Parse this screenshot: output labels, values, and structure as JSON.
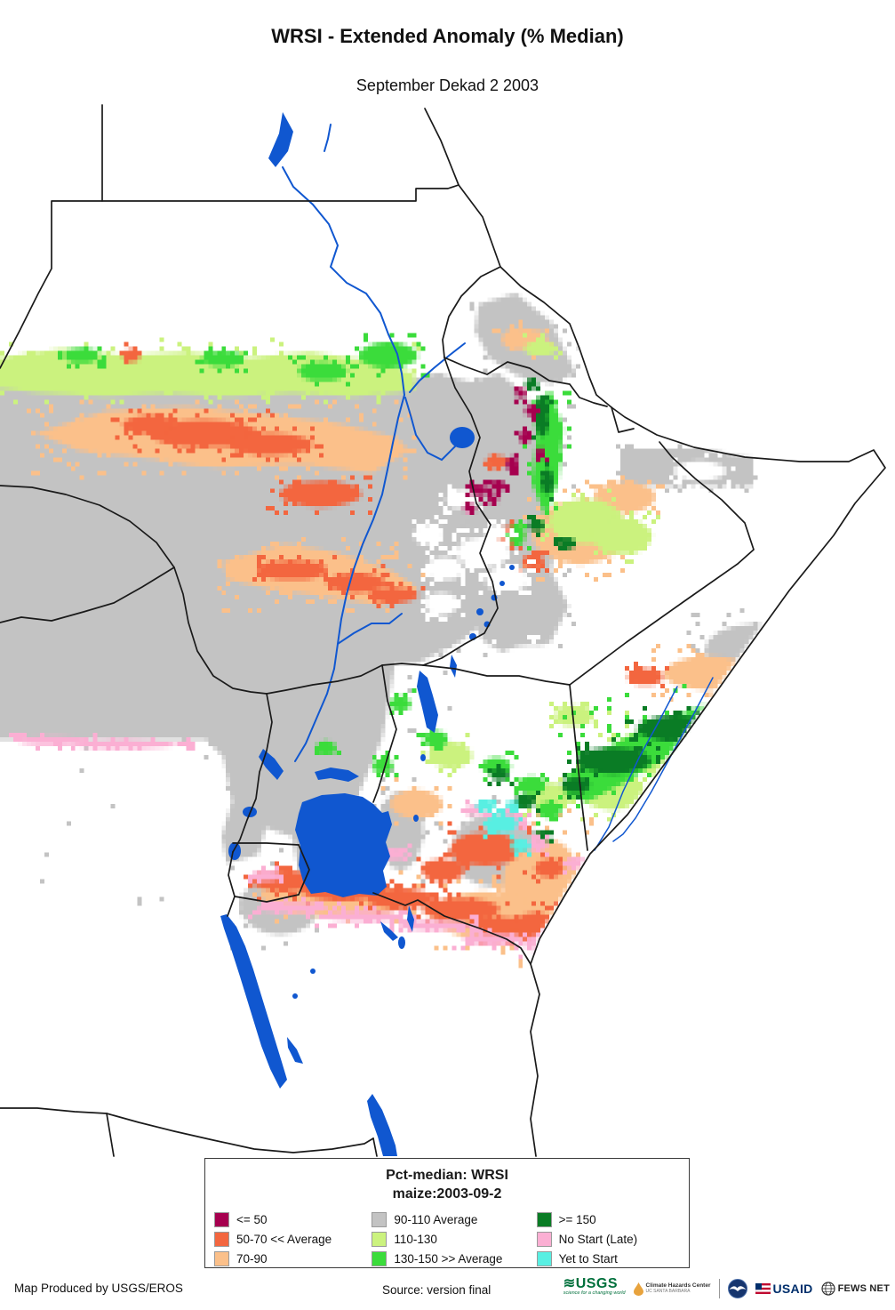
{
  "title": "WRSI - Extended Anomaly (% Median)",
  "subtitle": "September Dekad 2 2003",
  "legend": {
    "title_line1": "Pct-median: WRSI",
    "title_line2": "maize:2003-09-2",
    "items": [
      {
        "key": "le50",
        "label": "<= 50",
        "color": "#A6004F"
      },
      {
        "key": "c50_70",
        "label": "50-70 << Average",
        "color": "#F3663F"
      },
      {
        "key": "c70_90",
        "label": "70-90",
        "color": "#FBC08A"
      },
      {
        "key": "c90_110",
        "label": "90-110 Average",
        "color": "#C3C3C3"
      },
      {
        "key": "c110_130",
        "label": "110-130",
        "color": "#CBF27E"
      },
      {
        "key": "c130_150",
        "label": "130-150 >> Average",
        "color": "#3BDC3B"
      },
      {
        "key": "ge150",
        "label": ">= 150",
        "color": "#0A7C25"
      },
      {
        "key": "no_start",
        "label": "No Start (Late)",
        "color": "#FBAFD3"
      },
      {
        "key": "yet_to_start",
        "label": "Yet to Start",
        "color": "#58EFE2"
      }
    ],
    "columns": [
      [
        0,
        1,
        2
      ],
      [
        3,
        4,
        5
      ],
      [
        6,
        7,
        8
      ]
    ]
  },
  "map": {
    "water_color": "#1057D0",
    "border_color": "#1a1a1a",
    "background": "#FFFFFF"
  },
  "footer": {
    "produced_by": "Map Produced by USGS/EROS",
    "source": "Source: version final",
    "logos": [
      {
        "name": "usgs-logo",
        "text": "USGS",
        "tagline": "science for a changing world",
        "color": "#00703C"
      },
      {
        "name": "climate-hazards-center-logo",
        "text": "Climate Hazards Center",
        "subtext": "UC SANTA BARBARA",
        "color": "#E8A33D"
      },
      {
        "name": "noaa-logo",
        "text": "NOAA",
        "color": "#16356E"
      },
      {
        "name": "usaid-logo",
        "text": "USAID",
        "color": "#002F6C"
      },
      {
        "name": "fews-net-logo",
        "text": "FEWS NET",
        "color": "#222222"
      }
    ]
  }
}
